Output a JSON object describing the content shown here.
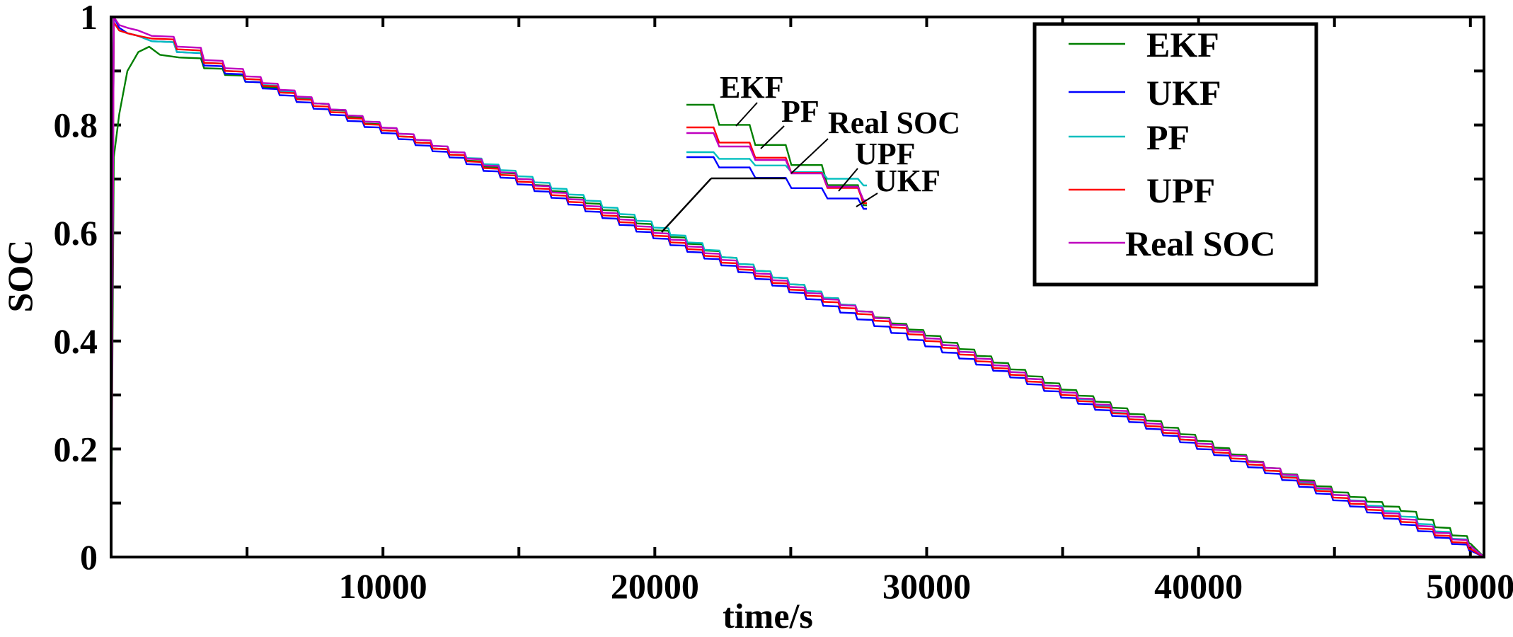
{
  "chart_data": {
    "type": "line",
    "xlabel": "time/s",
    "ylabel": "SOC",
    "xlim": [
      0,
      50500
    ],
    "ylim": [
      0,
      1
    ],
    "xticks": [
      10000,
      20000,
      30000,
      40000,
      50000
    ],
    "xtick_labels": [
      "10000",
      "20000",
      "30000",
      "40000",
      "50000"
    ],
    "yticks": [
      0,
      0.2,
      0.4,
      0.6,
      0.8,
      1
    ],
    "ytick_labels": [
      "0",
      "0.2",
      "0.4",
      "0.6",
      "0.8",
      "1"
    ],
    "legend_position": "top-right",
    "series": [
      {
        "name": "EKF",
        "color": "#007f00",
        "x": [
          0,
          100,
          300,
          600,
          1000,
          1400,
          1800,
          2500,
          3500,
          5000,
          7500,
          10000,
          12500,
          15000,
          17500,
          20000,
          22500,
          25000,
          27500,
          30000,
          32500,
          35000,
          37500,
          40000,
          42500,
          45000,
          47500,
          50000,
          50500
        ],
        "y": [
          0.0,
          0.74,
          0.82,
          0.9,
          0.935,
          0.945,
          0.93,
          0.925,
          0.905,
          0.88,
          0.84,
          0.79,
          0.745,
          0.7,
          0.655,
          0.605,
          0.555,
          0.505,
          0.455,
          0.41,
          0.36,
          0.31,
          0.265,
          0.215,
          0.165,
          0.12,
          0.085,
          0.025,
          0.0
        ]
      },
      {
        "name": "UKF",
        "color": "#0000ff",
        "x": [
          0,
          100,
          300,
          600,
          1000,
          1500,
          2500,
          3500,
          5000,
          7500,
          10000,
          12500,
          15000,
          17500,
          20000,
          22500,
          25000,
          27500,
          30000,
          32500,
          35000,
          37500,
          40000,
          42500,
          45000,
          47500,
          50000,
          50500
        ],
        "y": [
          0.0,
          1.0,
          0.98,
          0.97,
          0.965,
          0.955,
          0.935,
          0.91,
          0.88,
          0.83,
          0.785,
          0.74,
          0.69,
          0.64,
          0.59,
          0.54,
          0.49,
          0.44,
          0.39,
          0.345,
          0.295,
          0.25,
          0.2,
          0.155,
          0.105,
          0.06,
          0.012,
          0.0
        ]
      },
      {
        "name": "PF",
        "color": "#00bfbf",
        "x": [
          0,
          100,
          300,
          600,
          1000,
          1500,
          2500,
          3500,
          5000,
          7500,
          10000,
          12500,
          15000,
          17500,
          20000,
          22500,
          25000,
          27500,
          30000,
          32500,
          35000,
          37500,
          40000,
          42500,
          45000,
          47500,
          50000,
          50500
        ],
        "y": [
          0.0,
          0.99,
          0.975,
          0.97,
          0.965,
          0.955,
          0.935,
          0.915,
          0.885,
          0.84,
          0.795,
          0.75,
          0.705,
          0.66,
          0.61,
          0.555,
          0.505,
          0.455,
          0.405,
          0.355,
          0.305,
          0.255,
          0.205,
          0.16,
          0.115,
          0.075,
          0.02,
          0.0
        ]
      },
      {
        "name": "UPF",
        "color": "#ff0000",
        "x": [
          0,
          100,
          300,
          600,
          1000,
          1500,
          2500,
          3500,
          5000,
          7500,
          10000,
          12500,
          15000,
          17500,
          20000,
          22500,
          25000,
          27500,
          30000,
          32500,
          35000,
          37500,
          40000,
          42500,
          45000,
          47500,
          50000,
          50500
        ],
        "y": [
          0.0,
          0.99,
          0.975,
          0.97,
          0.965,
          0.96,
          0.94,
          0.915,
          0.885,
          0.835,
          0.79,
          0.745,
          0.695,
          0.645,
          0.595,
          0.545,
          0.495,
          0.45,
          0.4,
          0.35,
          0.3,
          0.255,
          0.205,
          0.16,
          0.11,
          0.065,
          0.015,
          0.0
        ]
      },
      {
        "name": "Real SOC",
        "color": "#bf00bf",
        "x": [
          0,
          100,
          300,
          600,
          1000,
          1500,
          2500,
          3500,
          5000,
          7500,
          10000,
          12500,
          15000,
          17500,
          20000,
          22500,
          25000,
          27500,
          30000,
          32500,
          35000,
          37500,
          40000,
          42500,
          45000,
          47500,
          50000,
          50500
        ],
        "y": [
          0.0,
          1.0,
          0.985,
          0.98,
          0.975,
          0.965,
          0.945,
          0.92,
          0.89,
          0.84,
          0.795,
          0.75,
          0.7,
          0.65,
          0.6,
          0.55,
          0.5,
          0.455,
          0.405,
          0.355,
          0.305,
          0.26,
          0.21,
          0.165,
          0.115,
          0.07,
          0.02,
          0.0
        ]
      }
    ],
    "inset_labels": [
      "EKF",
      "PF",
      "Real SOC",
      "UPF",
      "UKF"
    ]
  }
}
